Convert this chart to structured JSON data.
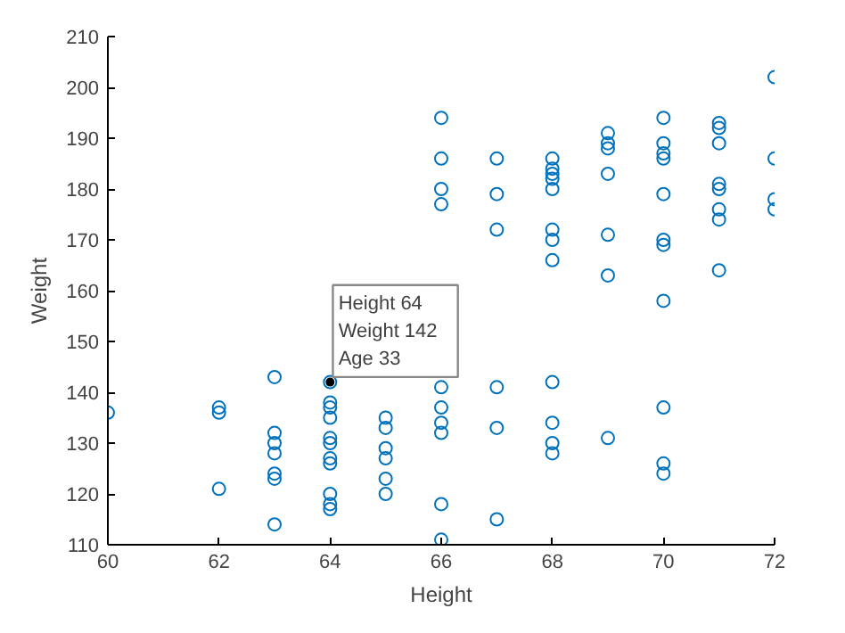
{
  "chart_data": {
    "type": "scatter",
    "xlabel": "Height",
    "ylabel": "Weight",
    "xlim": [
      60,
      72
    ],
    "xticks": [
      60,
      62,
      64,
      66,
      68,
      70,
      72
    ],
    "ylim": [
      110,
      210
    ],
    "yticks": [
      110,
      120,
      130,
      140,
      150,
      160,
      170,
      180,
      190,
      200,
      210
    ],
    "grid": false,
    "marker": "circle",
    "series": [
      {
        "color": "#0072bd",
        "x": [
          60,
          62,
          62,
          62,
          63,
          63,
          63,
          63,
          63,
          63,
          63,
          64,
          64,
          64,
          64,
          64,
          64,
          64,
          64,
          64,
          64,
          64,
          65,
          65,
          65,
          65,
          65,
          65,
          66,
          66,
          66,
          66,
          66,
          66,
          66,
          66,
          66,
          66,
          67,
          67,
          67,
          67,
          67,
          67,
          68,
          68,
          68,
          68,
          68,
          68,
          68,
          68,
          68,
          68,
          68,
          68,
          69,
          69,
          69,
          69,
          69,
          69,
          69,
          70,
          70,
          70,
          70,
          70,
          70,
          70,
          70,
          70,
          70,
          70,
          71,
          71,
          71,
          71,
          71,
          71,
          71,
          71,
          72,
          72,
          72,
          72
        ],
        "values": [
          136,
          137,
          136,
          121,
          143,
          132,
          130,
          128,
          124,
          123,
          114,
          142,
          138,
          137,
          135,
          131,
          130,
          127,
          126,
          120,
          118,
          117,
          135,
          133,
          129,
          127,
          123,
          120,
          141,
          137,
          134,
          132,
          118,
          111,
          194,
          186,
          180,
          177,
          141,
          133,
          115,
          186,
          179,
          172,
          142,
          134,
          130,
          128,
          186,
          184,
          183,
          182,
          180,
          172,
          170,
          166,
          131,
          191,
          189,
          188,
          183,
          171,
          163,
          158,
          137,
          126,
          124,
          194,
          189,
          187,
          186,
          179,
          170,
          169,
          193,
          192,
          189,
          181,
          180,
          176,
          174,
          164,
          202,
          186,
          178,
          176
        ]
      }
    ],
    "annotations": [
      {
        "text": "Height 64\nWeight 142\nAge 33",
        "x": 64,
        "y": 142
      }
    ]
  }
}
